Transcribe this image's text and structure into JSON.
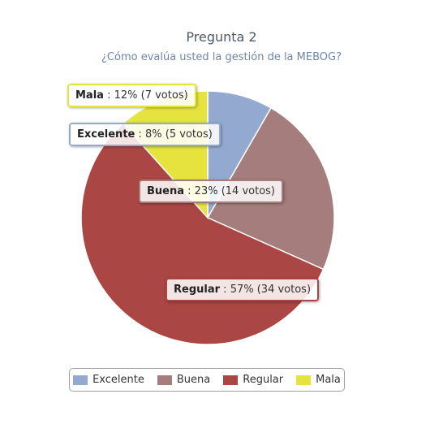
{
  "chart_data": {
    "type": "pie",
    "title": "Pregunta 2",
    "subtitle": "¿Cómo evalúa usted la gestión de la MEBOG?",
    "slices": [
      {
        "name": "Excelente",
        "percent": 8,
        "percent_label": "8%",
        "votes_label": "(5 votos)",
        "votes": 5,
        "color": "#93a9cf"
      },
      {
        "name": "Buena",
        "percent": 23,
        "percent_label": "23%",
        "votes_label": "(14 votos)",
        "votes": 14,
        "color": "#a47d7c"
      },
      {
        "name": "Regular",
        "percent": 57,
        "percent_label": "57%",
        "votes_label": "(34 votos)",
        "votes": 34,
        "color": "#aa4643"
      },
      {
        "name": "Mala",
        "percent": 12,
        "percent_label": "12%",
        "votes_label": "(7 votos)",
        "votes": 7,
        "color": "#e6e33f"
      }
    ],
    "legend_position": "bottom"
  }
}
